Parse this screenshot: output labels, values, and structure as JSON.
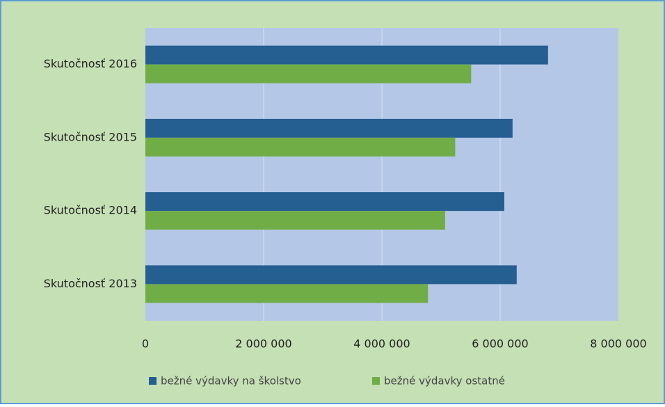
{
  "chart_data": {
    "type": "hbar",
    "categories": [
      "Skutočnosť 2013",
      "Skutočnosť 2014",
      "Skutočnosť 2015",
      "Skutočnosť 2016"
    ],
    "series": [
      {
        "name": "bežné výdavky na školstvo",
        "color": "#255e91",
        "values": [
          6280000,
          6070000,
          6210000,
          6810000
        ]
      },
      {
        "name": "bežné výdavky ostatné",
        "color": "#70ad47",
        "values": [
          4780000,
          5070000,
          5240000,
          5510000
        ]
      }
    ],
    "xlim": [
      0,
      8000000
    ],
    "xticks": [
      0,
      {
        "value": 2000000,
        "label": "2 000 000"
      },
      {
        "value": 4000000,
        "label": "4 000 000"
      },
      {
        "value": 6000000,
        "label": "6 000 000"
      },
      {
        "value": 8000000,
        "label": "8 000 000"
      }
    ],
    "grid": true,
    "legend": "bottom"
  }
}
